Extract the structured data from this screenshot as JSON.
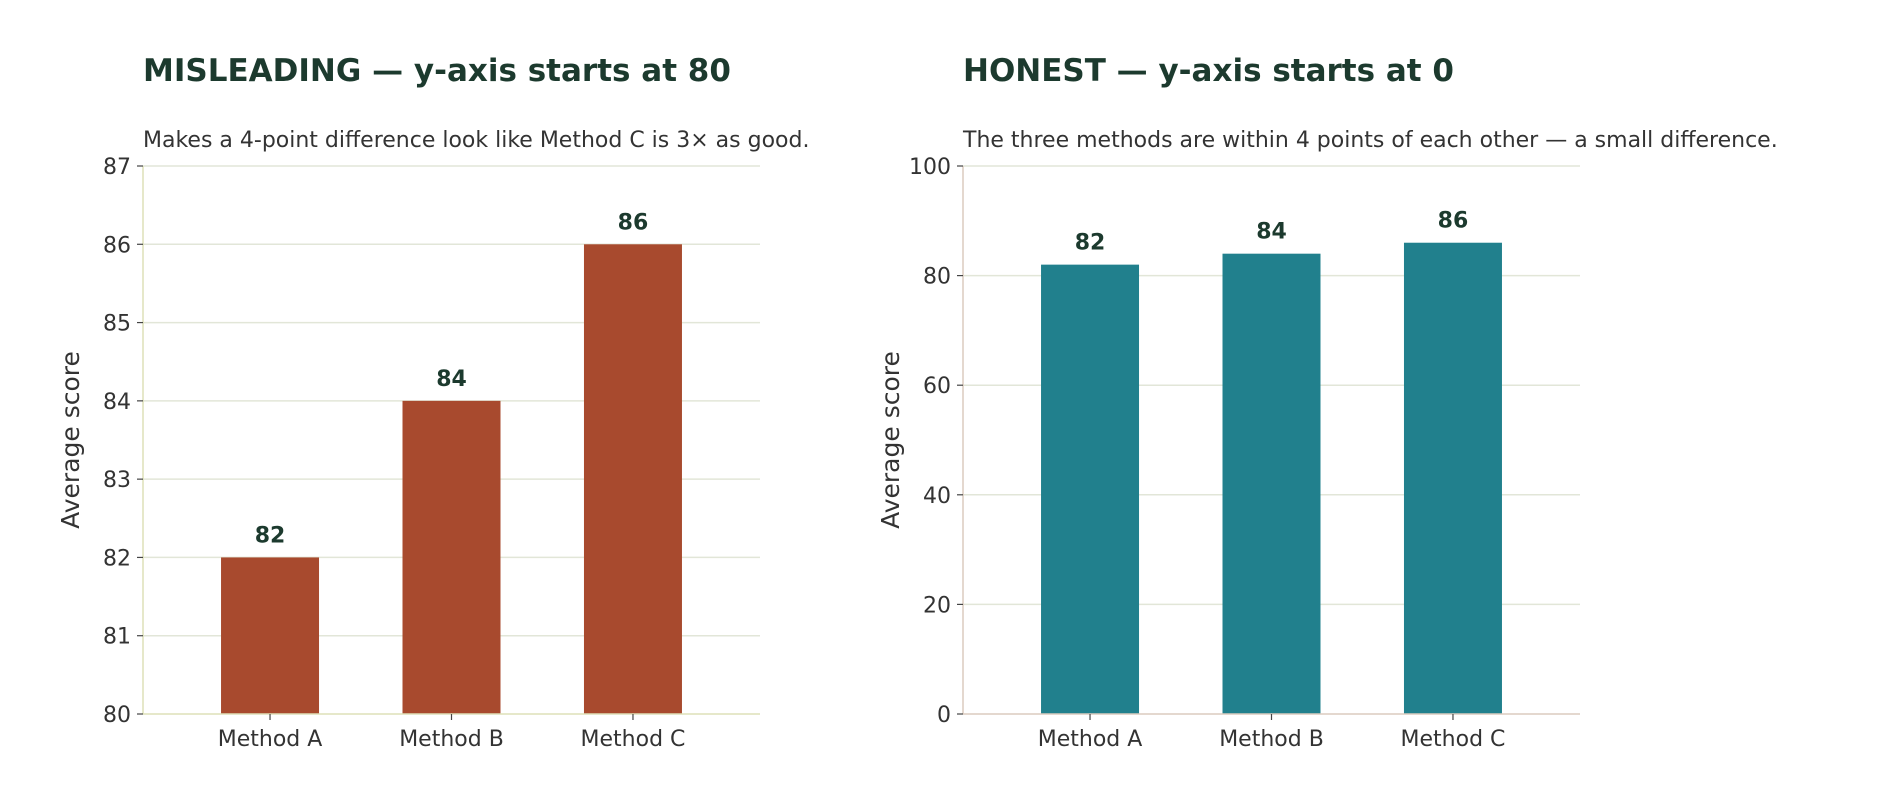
{
  "chart_data": [
    {
      "type": "bar",
      "title": "MISLEADING — y-axis starts at 80",
      "subtitle": "Makes a 4-point difference look like Method C is 3× as good.",
      "xlabel": "",
      "ylabel": "Average score",
      "categories": [
        "Method A",
        "Method B",
        "Method C"
      ],
      "values": [
        82,
        84,
        86
      ],
      "data_labels": [
        "82",
        "84",
        "86"
      ],
      "ylim": [
        80,
        87
      ],
      "yticks": [
        80,
        81,
        82,
        83,
        84,
        85,
        86,
        87
      ],
      "ytick_labels": [
        "80",
        "81",
        "82",
        "83",
        "84",
        "85",
        "86",
        "87"
      ],
      "grid": "horizontal",
      "bar_color": "#a84a2e"
    },
    {
      "type": "bar",
      "title": "HONEST — y-axis starts at 0",
      "subtitle": "The three methods are within 4 points of each other — a small difference.",
      "xlabel": "",
      "ylabel": "Average score",
      "categories": [
        "Method A",
        "Method B",
        "Method C"
      ],
      "values": [
        82,
        84,
        86
      ],
      "data_labels": [
        "82",
        "84",
        "86"
      ],
      "ylim": [
        0,
        100
      ],
      "yticks": [
        0,
        20,
        40,
        60,
        80,
        100
      ],
      "ytick_labels": [
        "0",
        "20",
        "40",
        "60",
        "80",
        "100"
      ],
      "grid": "horizontal",
      "bar_color": "#21808d"
    }
  ],
  "colors": {
    "title": "#1c3a2e",
    "text": "#333333",
    "grid": "#e2e6d8",
    "axis_left_panel": "#dde0b8",
    "axis_right_panel": "#dcccbf"
  }
}
